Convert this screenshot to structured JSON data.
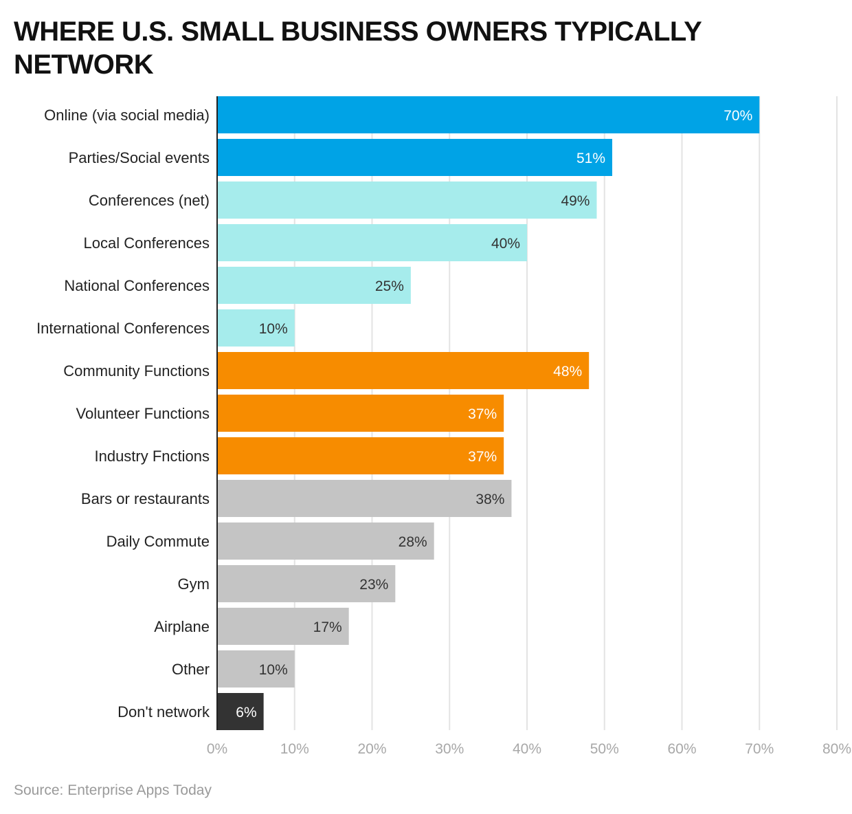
{
  "chart_data": {
    "type": "bar",
    "orientation": "horizontal",
    "title": "WHERE U.S. SMALL BUSINESS OWNERS TYPICALLY NETWORK",
    "source": "Source: Enterprise Apps Today",
    "categories": [
      "Online (via social media)",
      "Parties/Social events",
      "Conferences (net)",
      "Local Conferences",
      "National Conferences",
      "International Conferences",
      "Community Functions",
      "Volunteer Functions",
      "Industry Fnctions",
      "Bars or restaurants",
      "Daily Commute",
      "Gym",
      "Airplane",
      "Other",
      "Don't network"
    ],
    "values": [
      70,
      51,
      49,
      40,
      25,
      10,
      48,
      37,
      37,
      38,
      28,
      23,
      17,
      10,
      6
    ],
    "value_labels": [
      "70%",
      "51%",
      "49%",
      "40%",
      "25%",
      "10%",
      "48%",
      "37%",
      "37%",
      "38%",
      "28%",
      "23%",
      "17%",
      "10%",
      "6%"
    ],
    "bar_colors": [
      "#00a3e6",
      "#00a3e6",
      "#a6ecec",
      "#a6ecec",
      "#a6ecec",
      "#a6ecec",
      "#f78c00",
      "#f78c00",
      "#f78c00",
      "#c4c4c4",
      "#c4c4c4",
      "#c4c4c4",
      "#c4c4c4",
      "#c4c4c4",
      "#333333"
    ],
    "label_colors": [
      "#ffffff",
      "#ffffff",
      "#333333",
      "#333333",
      "#333333",
      "#333333",
      "#ffffff",
      "#ffffff",
      "#ffffff",
      "#333333",
      "#333333",
      "#333333",
      "#333333",
      "#333333",
      "#ffffff"
    ],
    "xlim": [
      0,
      80
    ],
    "xticks": [
      0,
      10,
      20,
      30,
      40,
      50,
      60,
      70,
      80
    ],
    "xtick_labels": [
      "0%",
      "10%",
      "20%",
      "30%",
      "40%",
      "50%",
      "60%",
      "70%",
      "80%"
    ],
    "grid": true
  }
}
